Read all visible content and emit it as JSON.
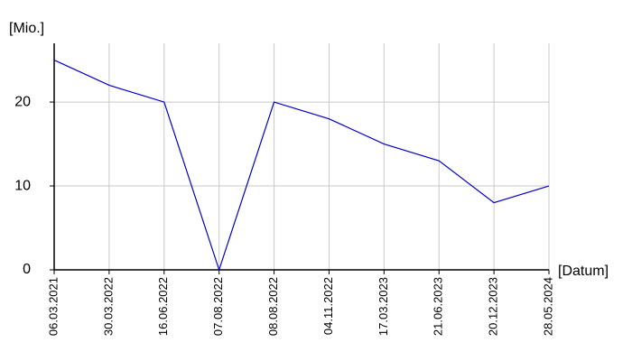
{
  "chart_data": {
    "type": "line",
    "y_label": "[Mio.]",
    "x_label": "[Datum]",
    "categories": [
      "06.03.2021",
      "30.03.2022",
      "16.06.2022",
      "07.08.2022",
      "08.08.2022",
      "04.11.2022",
      "17.03.2023",
      "21.06.2023",
      "20.12.2023",
      "28.05.2024"
    ],
    "values": [
      25,
      22,
      20,
      0,
      20,
      18,
      15,
      13,
      8,
      10
    ],
    "color": "#0000cc",
    "ylim": [
      0,
      27
    ],
    "yticks": [
      0,
      10,
      20
    ],
    "grid": true
  }
}
